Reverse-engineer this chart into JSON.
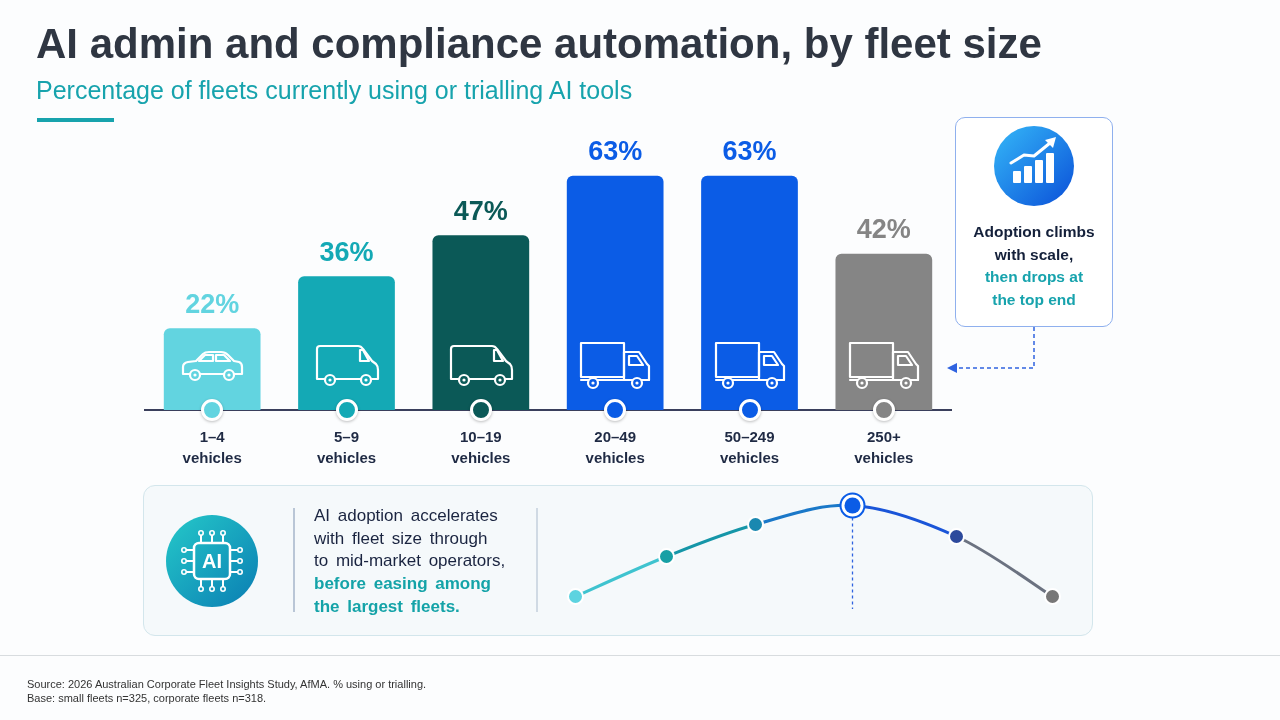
{
  "chart_data": [
    {
      "type": "bar",
      "title": "AI admin and compliance automation, by fleet size",
      "subtitle": "Percentage of fleets currently using or trialling AI tools",
      "categories": [
        "1–4 vehicles",
        "5–9 vehicles",
        "10–19 vehicles",
        "20–49 vehicles",
        "50–249 vehicles",
        "250+ vehicles"
      ],
      "values": [
        22,
        36,
        47,
        63,
        63,
        42
      ],
      "colors": [
        "#62d4e0",
        "#14a9b5",
        "#0b5957",
        "#0b5ce6",
        "#0b5ce6",
        "#858585"
      ],
      "value_labels": [
        "22%",
        "36%",
        "47%",
        "63%",
        "63%",
        "42%"
      ],
      "tick_labels": "x",
      "annotations": [
        "Adoption climbs with scale,",
        "then drops at the top end",
        "Source: 2026 Australian Corporate Fleet Insights Study, AfMA. % using or trialling.",
        "Base: small fleets n=325, corporate fleets n=318."
      ]
    },
    {
      "type": "other",
      "annotations": [
        "AI",
        "AI adoption accelerates with fleet size through to mid-market operators,",
        "before easing among the largest fleets."
      ]
    }
  ]
}
